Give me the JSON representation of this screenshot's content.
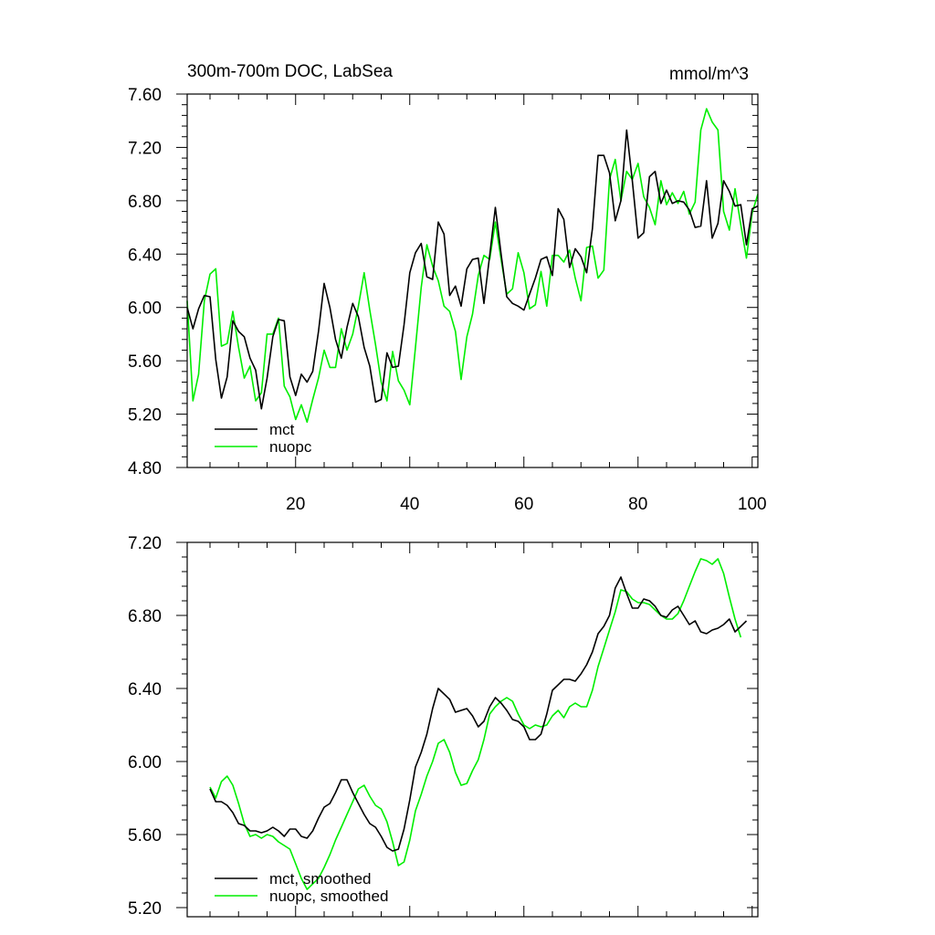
{
  "colors": {
    "mct": "#000000",
    "nuopc": "#00ee00",
    "frame": "#000000",
    "background": "#ffffff"
  },
  "chart_data": [
    {
      "type": "line",
      "title": "300m-700m DOC, LabSea",
      "units": "mmol/m^3",
      "xlim": [
        1,
        101
      ],
      "ylim": [
        4.8,
        7.6
      ],
      "yticks": [
        4.8,
        5.2,
        5.6,
        6.0,
        6.4,
        6.8,
        7.2,
        7.6
      ],
      "ytick_labels": [
        "4.80",
        "5.20",
        "5.60",
        "6.00",
        "6.40",
        "6.80",
        "7.20",
        "7.60"
      ],
      "xticks": [
        20,
        40,
        60,
        80,
        100
      ],
      "xtick_labels": [
        "20",
        "40",
        "60",
        "80",
        "100"
      ],
      "legend_position": "bottom-left",
      "series": [
        {
          "name": "mct",
          "color_key": "mct",
          "x_start": 1,
          "values": [
            6.0,
            5.84,
            5.99,
            6.09,
            6.08,
            5.61,
            5.32,
            5.48,
            5.9,
            5.82,
            5.78,
            5.62,
            5.53,
            5.24,
            5.47,
            5.78,
            5.91,
            5.9,
            5.48,
            5.34,
            5.5,
            5.44,
            5.52,
            5.82,
            6.18,
            6.0,
            5.76,
            5.62,
            5.85,
            6.03,
            5.93,
            5.7,
            5.56,
            5.29,
            5.31,
            5.66,
            5.55,
            5.56,
            5.87,
            6.26,
            6.41,
            6.48,
            6.23,
            6.21,
            6.64,
            6.55,
            6.09,
            6.16,
            6.01,
            6.29,
            6.36,
            6.37,
            6.03,
            6.39,
            6.75,
            6.4,
            6.08,
            6.03,
            6.01,
            5.98,
            6.1,
            6.22,
            6.36,
            6.38,
            6.24,
            6.74,
            6.66,
            6.3,
            6.44,
            6.38,
            6.26,
            6.59,
            7.14,
            7.14,
            7.01,
            6.65,
            6.8,
            7.33,
            6.95,
            6.52,
            6.56,
            6.98,
            7.02,
            6.78,
            6.88,
            6.78,
            6.8,
            6.79,
            6.73,
            6.6,
            6.61,
            6.95,
            6.52,
            6.63,
            6.95,
            6.87,
            6.76,
            6.77,
            6.47,
            6.74,
            6.76
          ]
        },
        {
          "name": "nuopc",
          "color_key": "nuopc",
          "x_start": 1,
          "values": [
            6.05,
            5.3,
            5.5,
            6.05,
            6.25,
            6.29,
            5.71,
            5.73,
            5.97,
            5.7,
            5.47,
            5.56,
            5.3,
            5.36,
            5.8,
            5.8,
            5.92,
            5.41,
            5.33,
            5.16,
            5.27,
            5.14,
            5.31,
            5.47,
            5.68,
            5.55,
            5.55,
            5.84,
            5.68,
            5.8,
            6.01,
            6.26,
            5.98,
            5.72,
            5.44,
            5.3,
            5.67,
            5.45,
            5.38,
            5.27,
            5.7,
            6.15,
            6.47,
            6.31,
            6.2,
            6.01,
            5.97,
            5.82,
            5.46,
            5.78,
            5.95,
            6.24,
            6.39,
            6.36,
            6.64,
            6.36,
            6.1,
            6.14,
            6.41,
            6.26,
            5.99,
            6.02,
            6.27,
            6.01,
            6.39,
            6.39,
            6.34,
            6.43,
            6.22,
            6.05,
            6.45,
            6.46,
            6.22,
            6.28,
            6.96,
            7.11,
            6.8,
            7.02,
            6.96,
            7.08,
            6.83,
            6.75,
            6.62,
            6.95,
            6.77,
            6.86,
            6.78,
            6.87,
            6.7,
            6.79,
            7.33,
            7.49,
            7.39,
            7.33,
            6.72,
            6.58,
            6.89,
            6.62,
            6.37,
            6.71,
            6.85
          ]
        }
      ]
    },
    {
      "type": "line",
      "title": "",
      "xlim": [
        1,
        101
      ],
      "ylim": [
        5.15,
        7.2
      ],
      "yticks": [
        5.2,
        5.6,
        6.0,
        6.4,
        6.8,
        7.2
      ],
      "ytick_labels": [
        "5.20",
        "5.60",
        "6.00",
        "6.40",
        "6.80",
        "7.20"
      ],
      "xticks": [
        20,
        40,
        60,
        80,
        100
      ],
      "legend_position": "bottom-left",
      "series": [
        {
          "name": "mct, smoothed",
          "color_key": "mct",
          "x_start": 5,
          "values": [
            5.85,
            5.78,
            5.78,
            5.76,
            5.72,
            5.66,
            5.65,
            5.62,
            5.62,
            5.61,
            5.62,
            5.64,
            5.62,
            5.59,
            5.63,
            5.63,
            5.59,
            5.58,
            5.62,
            5.69,
            5.75,
            5.77,
            5.83,
            5.9,
            5.9,
            5.83,
            5.77,
            5.71,
            5.66,
            5.64,
            5.59,
            5.53,
            5.51,
            5.52,
            5.63,
            5.79,
            5.97,
            6.05,
            6.15,
            6.29,
            6.4,
            6.37,
            6.34,
            6.27,
            6.28,
            6.29,
            6.25,
            6.19,
            6.22,
            6.3,
            6.35,
            6.32,
            6.28,
            6.23,
            6.22,
            6.19,
            6.12,
            6.12,
            6.15,
            6.26,
            6.39,
            6.42,
            6.45,
            6.45,
            6.44,
            6.48,
            6.53,
            6.6,
            6.7,
            6.74,
            6.8,
            6.95,
            7.01,
            6.92,
            6.84,
            6.84,
            6.89,
            6.88,
            6.85,
            6.8,
            6.79,
            6.83,
            6.85,
            6.8,
            6.75,
            6.77,
            6.71,
            6.7,
            6.72,
            6.73,
            6.75,
            6.78,
            6.71,
            6.74,
            6.77
          ]
        },
        {
          "name": "nuopc, smoothed",
          "color_key": "nuopc",
          "x_start": 5,
          "values": [
            5.86,
            5.8,
            5.89,
            5.92,
            5.87,
            5.77,
            5.66,
            5.59,
            5.6,
            5.58,
            5.6,
            5.59,
            5.56,
            5.54,
            5.52,
            5.44,
            5.36,
            5.3,
            5.33,
            5.36,
            5.42,
            5.49,
            5.57,
            5.64,
            5.71,
            5.78,
            5.85,
            5.87,
            5.81,
            5.76,
            5.74,
            5.67,
            5.56,
            5.43,
            5.45,
            5.57,
            5.73,
            5.82,
            5.92,
            6.0,
            6.1,
            6.12,
            6.05,
            5.94,
            5.87,
            5.88,
            5.95,
            6.01,
            6.12,
            6.26,
            6.3,
            6.33,
            6.35,
            6.33,
            6.26,
            6.2,
            6.18,
            6.2,
            6.19,
            6.2,
            6.25,
            6.28,
            6.24,
            6.3,
            6.32,
            6.3,
            6.3,
            6.39,
            6.52,
            6.62,
            6.72,
            6.82,
            6.94,
            6.93,
            6.89,
            6.87,
            6.87,
            6.86,
            6.83,
            6.8,
            6.78,
            6.78,
            6.81,
            6.88,
            6.96,
            7.04,
            7.11,
            7.1,
            7.08,
            7.11,
            7.03,
            6.9,
            6.78,
            6.68
          ]
        }
      ]
    }
  ]
}
